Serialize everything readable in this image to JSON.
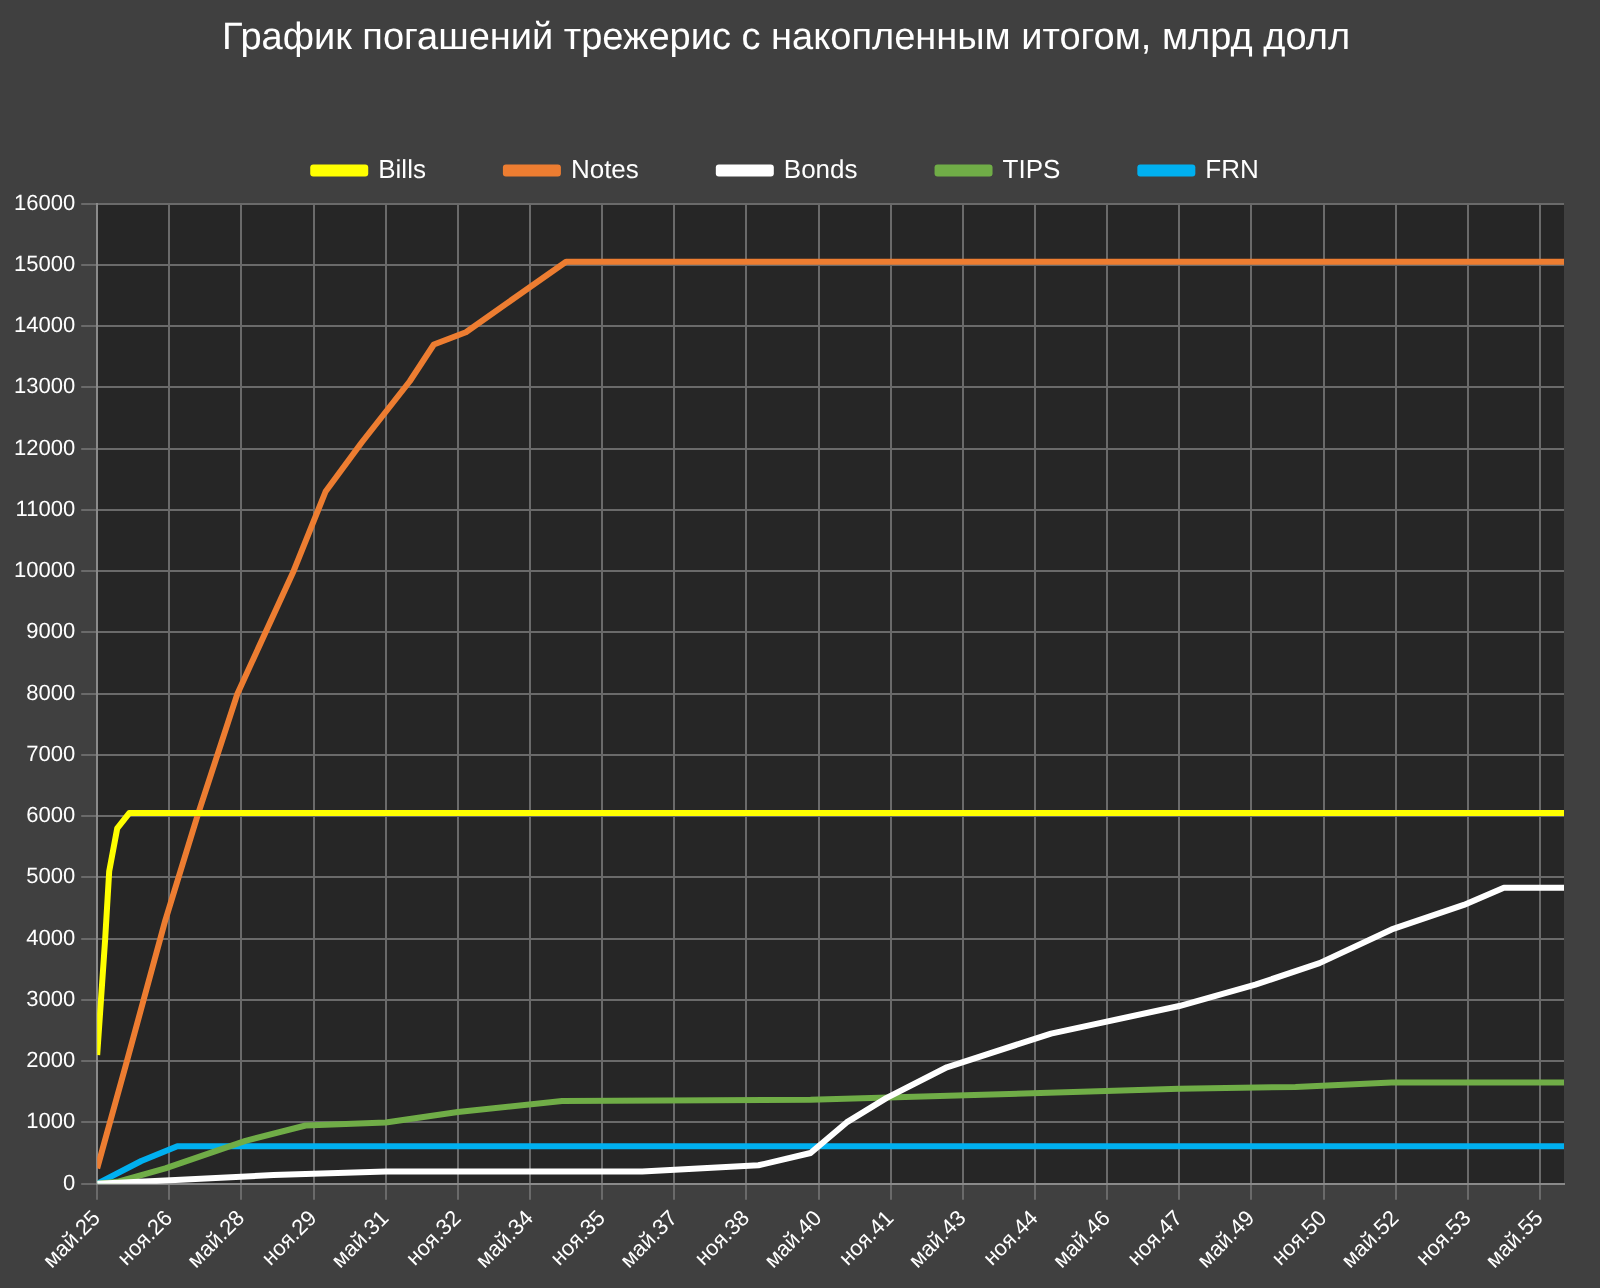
{
  "chart_data": {
    "type": "line",
    "title": "График погашений трежерис с накопленным итогом, млрд долл",
    "xlim": [
      "2025-05",
      "2055-11"
    ],
    "xticks": [
      {
        "value": "2025-05",
        "label": "май.25"
      },
      {
        "value": "2026-11",
        "label": "ноя.26"
      },
      {
        "value": "2028-05",
        "label": "май.28"
      },
      {
        "value": "2029-11",
        "label": "ноя.29"
      },
      {
        "value": "2031-05",
        "label": "май.31"
      },
      {
        "value": "2032-11",
        "label": "ноя.32"
      },
      {
        "value": "2034-05",
        "label": "май.34"
      },
      {
        "value": "2035-11",
        "label": "ноя.35"
      },
      {
        "value": "2037-05",
        "label": "май.37"
      },
      {
        "value": "2038-11",
        "label": "ноя.38"
      },
      {
        "value": "2040-05",
        "label": "май.40"
      },
      {
        "value": "2041-11",
        "label": "ноя.41"
      },
      {
        "value": "2043-05",
        "label": "май.43"
      },
      {
        "value": "2044-11",
        "label": "ноя.44"
      },
      {
        "value": "2046-05",
        "label": "май.46"
      },
      {
        "value": "2047-11",
        "label": "ноя.47"
      },
      {
        "value": "2049-05",
        "label": "май.49"
      },
      {
        "value": "2050-11",
        "label": "ноя.50"
      },
      {
        "value": "2052-05",
        "label": "май.52"
      },
      {
        "value": "2053-11",
        "label": "ноя.53"
      },
      {
        "value": "2055-05",
        "label": "май.55"
      }
    ],
    "ylim": [
      0,
      16000
    ],
    "yticks": [
      0,
      1000,
      2000,
      3000,
      4000,
      5000,
      6000,
      7000,
      8000,
      9000,
      10000,
      11000,
      12000,
      13000,
      14000,
      15000,
      16000
    ],
    "grid": true,
    "legend": "top",
    "marker": "none",
    "line_style": "solid",
    "series": [
      {
        "name": "Bills",
        "color": "#ffff00",
        "x": [
          "2025-05",
          "2025-07",
          "2025-08",
          "2025-10",
          "2026-01",
          "2055-11"
        ],
        "values": [
          2100,
          4000,
          5100,
          5800,
          6050,
          6050
        ]
      },
      {
        "name": "Notes",
        "color": "#ed7d31",
        "x": [
          "2025-05",
          "2025-12",
          "2026-10",
          "2027-06",
          "2028-04",
          "2029-06",
          "2030-02",
          "2030-11",
          "2031-11",
          "2032-05",
          "2033-01",
          "2034-02",
          "2035-02",
          "2055-11"
        ],
        "values": [
          250,
          1900,
          4300,
          6000,
          8000,
          10000,
          11300,
          12100,
          13100,
          13700,
          13900,
          14500,
          15050,
          15050
        ]
      },
      {
        "name": "Bonds",
        "color": "#ffffff",
        "x": [
          "2025-05",
          "2026-10",
          "2029-01",
          "2031-05",
          "2036-09",
          "2039-02",
          "2040-03",
          "2040-12",
          "2041-10",
          "2043-01",
          "2045-03",
          "2047-11",
          "2049-06",
          "2050-10",
          "2052-04",
          "2053-10",
          "2054-08",
          "2055-11"
        ],
        "values": [
          0,
          50,
          140,
          200,
          200,
          300,
          500,
          1000,
          1400,
          1900,
          2450,
          2900,
          3250,
          3600,
          4150,
          4550,
          4830,
          4830
        ]
      },
      {
        "name": "TIPS",
        "color": "#70ad47",
        "x": [
          "2025-05",
          "2025-10",
          "2026-10",
          "2028-06",
          "2029-09",
          "2031-05",
          "2032-11",
          "2035-01",
          "2040-03",
          "2043-10",
          "2047-11",
          "2050-04",
          "2052-04",
          "2055-11"
        ],
        "values": [
          0,
          30,
          250,
          700,
          950,
          1000,
          1170,
          1350,
          1370,
          1450,
          1550,
          1580,
          1650,
          1650
        ]
      },
      {
        "name": "FRN",
        "color": "#00b0f0",
        "x": [
          "2025-05",
          "2026-04",
          "2027-01",
          "2055-11"
        ],
        "values": [
          0,
          370,
          610,
          610
        ]
      }
    ]
  }
}
